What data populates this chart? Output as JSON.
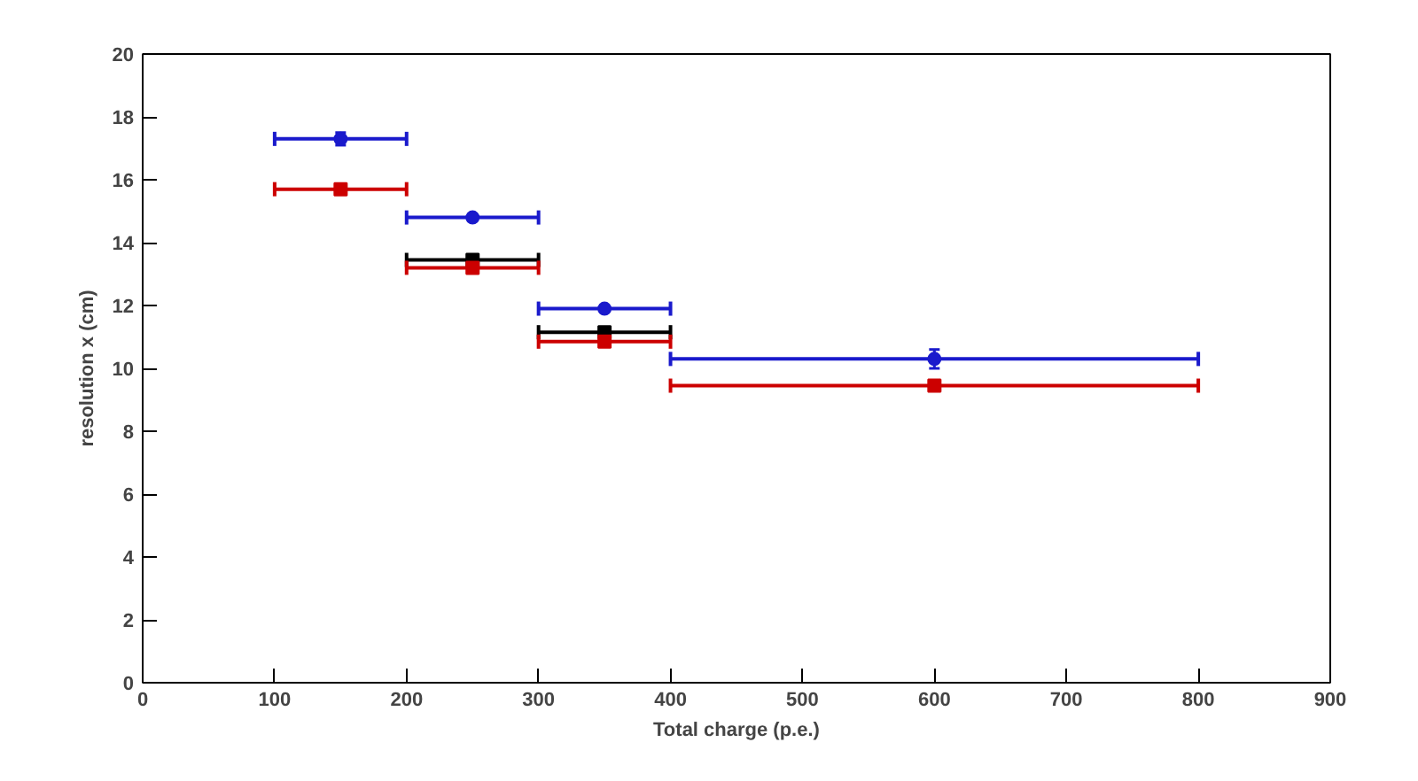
{
  "chart_data": {
    "type": "scatter",
    "xlabel": "Total charge (p.e.)",
    "ylabel": "resolution x (cm)",
    "x": [
      150,
      250,
      350,
      600
    ],
    "series": [
      {
        "color": "#1a1acc",
        "marker": "circle",
        "values": [
          17.3,
          14.8,
          11.9,
          10.3
        ],
        "errors": [
          0.2,
          0.1,
          0.1,
          0.3
        ],
        "xerrors": [
          50,
          50,
          50,
          200
        ]
      },
      {
        "color": "#000000",
        "marker": "square",
        "values": [
          null,
          13.45,
          11.15,
          null
        ],
        "xerrors": [
          null,
          50,
          50,
          null
        ]
      },
      {
        "color": "#cc0000",
        "marker": "square",
        "values": [
          15.7,
          13.2,
          10.85,
          9.45
        ],
        "xerrors": [
          50,
          50,
          50,
          200
        ]
      }
    ],
    "xlim": [
      0,
      900
    ],
    "xticks": [
      0,
      100,
      200,
      300,
      400,
      500,
      600,
      700,
      800,
      900
    ],
    "ylim": [
      0,
      20
    ],
    "yticks": [
      0,
      2,
      4,
      6,
      8,
      10,
      12,
      14,
      16,
      18,
      20
    ],
    "grid": false
  }
}
